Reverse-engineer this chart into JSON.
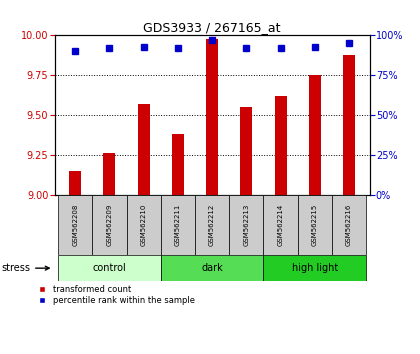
{
  "title": "GDS3933 / 267165_at",
  "samples": [
    "GSM562208",
    "GSM562209",
    "GSM562210",
    "GSM562211",
    "GSM562212",
    "GSM562213",
    "GSM562214",
    "GSM562215",
    "GSM562216"
  ],
  "transformed_counts": [
    9.15,
    9.26,
    9.57,
    9.38,
    9.98,
    9.55,
    9.62,
    9.75,
    9.88
  ],
  "percentile_ranks": [
    90,
    92,
    93,
    92,
    97,
    92,
    92,
    93,
    95
  ],
  "ylim_left": [
    9.0,
    10.0
  ],
  "ylim_right": [
    0,
    100
  ],
  "yticks_left": [
    9.0,
    9.25,
    9.5,
    9.75,
    10.0
  ],
  "yticks_right": [
    0,
    25,
    50,
    75,
    100
  ],
  "bar_color": "#cc0000",
  "dot_color": "#0000cc",
  "bar_width": 0.35,
  "groups": [
    {
      "label": "control",
      "start": 0,
      "end": 3,
      "color": "#ccffcc"
    },
    {
      "label": "dark",
      "start": 3,
      "end": 6,
      "color": "#55dd55"
    },
    {
      "label": "high light",
      "start": 6,
      "end": 9,
      "color": "#22cc22"
    }
  ],
  "stress_label": "stress",
  "legend_items": [
    {
      "label": "transformed count",
      "color": "#cc0000"
    },
    {
      "label": "percentile rank within the sample",
      "color": "#0000cc"
    }
  ],
  "grid_color": "#000000",
  "tick_color_left": "#cc0000",
  "tick_color_right": "#0000cc",
  "sample_box_color": "#cccccc",
  "title_fontsize": 9,
  "axis_fontsize": 7,
  "sample_fontsize": 5,
  "group_fontsize": 7,
  "legend_fontsize": 6
}
